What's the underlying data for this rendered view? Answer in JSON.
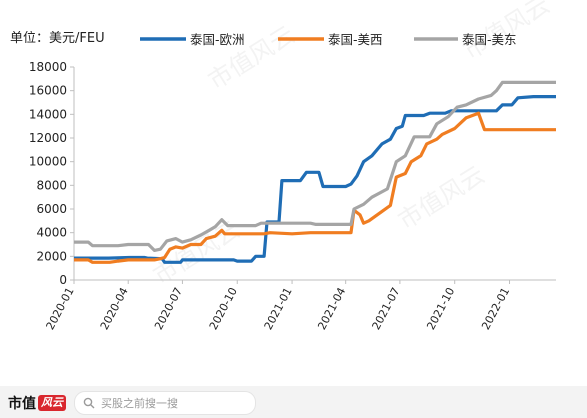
{
  "chart_data": {
    "type": "line",
    "unit_label": "单位：美元/FEU",
    "x_ticks": [
      "2020-01",
      "2020-04",
      "2020-07",
      "2020-10",
      "2021-01",
      "2021-04",
      "2021-07",
      "2021-10",
      "2022-01"
    ],
    "x_range": [
      "2020-01-01",
      "2022-03-20"
    ],
    "ylim": [
      0,
      18000
    ],
    "y_ticks": [
      0,
      2000,
      4000,
      6000,
      8000,
      10000,
      12000,
      14000,
      16000,
      18000
    ],
    "grid": false,
    "legend_position": "top",
    "watermark": "市值风云",
    "series": [
      {
        "name": "泰国-欧洲",
        "color": "#1f6db5",
        "points": [
          [
            "2020-01-01",
            1850
          ],
          [
            "2020-02-28",
            1850
          ],
          [
            "2020-04-03",
            1900
          ],
          [
            "2020-04-28",
            1900
          ],
          [
            "2020-05-03",
            1850
          ],
          [
            "2020-05-28",
            1800
          ],
          [
            "2020-06-01",
            1500
          ],
          [
            "2020-06-28",
            1500
          ],
          [
            "2020-07-01",
            1700
          ],
          [
            "2020-09-25",
            1700
          ],
          [
            "2020-10-01",
            1600
          ],
          [
            "2020-10-25",
            1600
          ],
          [
            "2020-11-01",
            2000
          ],
          [
            "2020-11-15",
            2000
          ],
          [
            "2020-11-20",
            4900
          ],
          [
            "2020-12-10",
            4900
          ],
          [
            "2020-12-15",
            8400
          ],
          [
            "2021-01-15",
            8400
          ],
          [
            "2021-01-25",
            9100
          ],
          [
            "2021-02-15",
            9100
          ],
          [
            "2021-02-22",
            7900
          ],
          [
            "2021-04-01",
            7900
          ],
          [
            "2021-04-10",
            8100
          ],
          [
            "2021-04-20",
            8800
          ],
          [
            "2021-05-01",
            10000
          ],
          [
            "2021-05-15",
            10500
          ],
          [
            "2021-06-01",
            11500
          ],
          [
            "2021-06-15",
            11900
          ],
          [
            "2021-06-25",
            12800
          ],
          [
            "2021-07-05",
            13000
          ],
          [
            "2021-07-10",
            13900
          ],
          [
            "2021-08-10",
            13900
          ],
          [
            "2021-08-20",
            14100
          ],
          [
            "2021-09-15",
            14100
          ],
          [
            "2021-09-25",
            14300
          ],
          [
            "2021-12-10",
            14300
          ],
          [
            "2021-12-20",
            14800
          ],
          [
            "2022-01-05",
            14800
          ],
          [
            "2022-01-15",
            15400
          ],
          [
            "2022-02-10",
            15500
          ],
          [
            "2022-03-20",
            15500
          ]
        ]
      },
      {
        "name": "泰国-美西",
        "color": "#f07d21",
        "points": [
          [
            "2020-01-01",
            1700
          ],
          [
            "2020-01-25",
            1700
          ],
          [
            "2020-02-01",
            1500
          ],
          [
            "2020-03-01",
            1500
          ],
          [
            "2020-03-15",
            1600
          ],
          [
            "2020-04-01",
            1700
          ],
          [
            "2020-05-15",
            1700
          ],
          [
            "2020-05-25",
            1800
          ],
          [
            "2020-06-01",
            1900
          ],
          [
            "2020-06-10",
            2600
          ],
          [
            "2020-06-20",
            2800
          ],
          [
            "2020-07-01",
            2700
          ],
          [
            "2020-07-15",
            3000
          ],
          [
            "2020-08-01",
            3000
          ],
          [
            "2020-08-10",
            3500
          ],
          [
            "2020-08-25",
            3700
          ],
          [
            "2020-09-05",
            4200
          ],
          [
            "2020-09-10",
            3900
          ],
          [
            "2020-11-15",
            3900
          ],
          [
            "2020-11-25",
            4000
          ],
          [
            "2021-01-01",
            3900
          ],
          [
            "2021-02-01",
            4000
          ],
          [
            "2021-04-10",
            4000
          ],
          [
            "2021-04-15",
            5900
          ],
          [
            "2021-04-25",
            5500
          ],
          [
            "2021-05-01",
            4800
          ],
          [
            "2021-05-10",
            5000
          ],
          [
            "2021-06-01",
            5800
          ],
          [
            "2021-06-15",
            6300
          ],
          [
            "2021-06-25",
            8700
          ],
          [
            "2021-07-10",
            9000
          ],
          [
            "2021-07-20",
            10000
          ],
          [
            "2021-08-05",
            10500
          ],
          [
            "2021-08-15",
            11500
          ],
          [
            "2021-09-01",
            11900
          ],
          [
            "2021-09-10",
            12300
          ],
          [
            "2021-10-01",
            12800
          ],
          [
            "2021-10-20",
            13700
          ],
          [
            "2021-11-10",
            14100
          ],
          [
            "2021-11-20",
            12700
          ],
          [
            "2022-03-20",
            12700
          ]
        ]
      },
      {
        "name": "泰国-美东",
        "color": "#a5a5a5",
        "points": [
          [
            "2020-01-01",
            3200
          ],
          [
            "2020-01-25",
            3200
          ],
          [
            "2020-02-01",
            2900
          ],
          [
            "2020-03-15",
            2900
          ],
          [
            "2020-04-01",
            3000
          ],
          [
            "2020-05-05",
            3000
          ],
          [
            "2020-05-15",
            2500
          ],
          [
            "2020-05-25",
            2600
          ],
          [
            "2020-06-05",
            3300
          ],
          [
            "2020-06-20",
            3500
          ],
          [
            "2020-07-01",
            3200
          ],
          [
            "2020-07-15",
            3400
          ],
          [
            "2020-08-01",
            3800
          ],
          [
            "2020-08-15",
            4200
          ],
          [
            "2020-08-25",
            4500
          ],
          [
            "2020-09-05",
            5100
          ],
          [
            "2020-09-15",
            4600
          ],
          [
            "2020-11-01",
            4600
          ],
          [
            "2020-11-10",
            4800
          ],
          [
            "2021-02-01",
            4800
          ],
          [
            "2021-02-10",
            4700
          ],
          [
            "2021-04-10",
            4700
          ],
          [
            "2021-04-15",
            6000
          ],
          [
            "2021-05-01",
            6400
          ],
          [
            "2021-05-15",
            7000
          ],
          [
            "2021-06-10",
            7700
          ],
          [
            "2021-06-25",
            10000
          ],
          [
            "2021-07-10",
            10500
          ],
          [
            "2021-07-25",
            12100
          ],
          [
            "2021-08-20",
            12100
          ],
          [
            "2021-09-01",
            13200
          ],
          [
            "2021-09-20",
            13800
          ],
          [
            "2021-10-05",
            14600
          ],
          [
            "2021-10-20",
            14800
          ],
          [
            "2021-11-10",
            15300
          ],
          [
            "2021-12-01",
            15600
          ],
          [
            "2021-12-10",
            16000
          ],
          [
            "2021-12-20",
            16700
          ],
          [
            "2022-03-20",
            16700
          ]
        ]
      }
    ]
  },
  "footer": {
    "logo_text": "市值",
    "logo_mark": "风云",
    "search_placeholder": "买股之前搜一搜"
  }
}
